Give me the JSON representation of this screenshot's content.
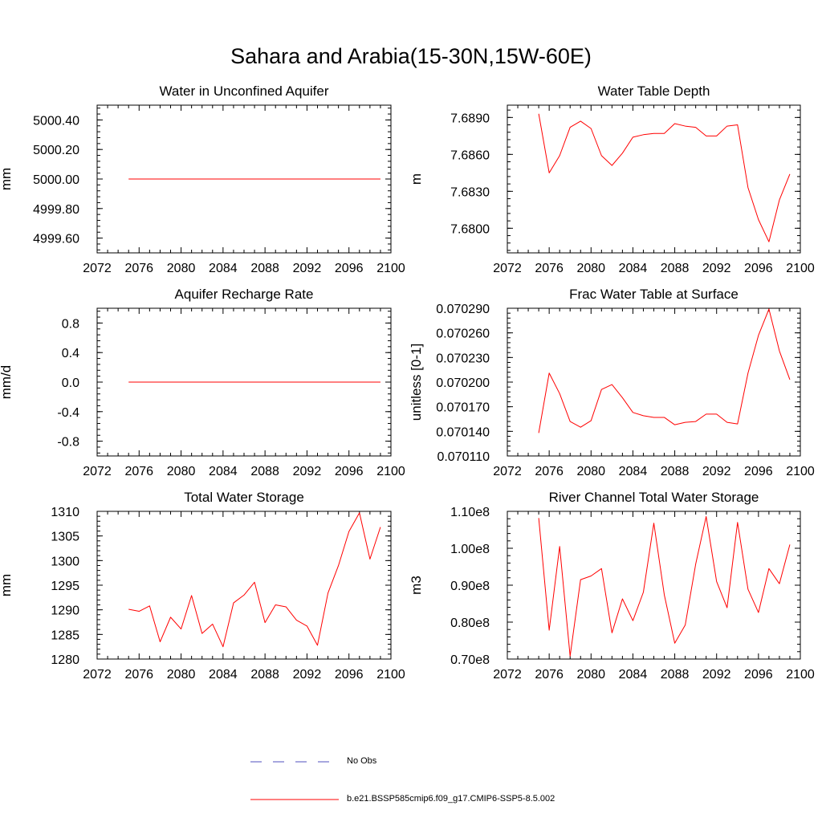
{
  "title": "Sahara and Arabia(15-30N,15W-60E)",
  "colors": {
    "model": "#ff0000",
    "obs": "#4f4fbf",
    "axis": "#000000"
  },
  "legend": [
    {
      "label": "No Obs",
      "style": "dashed",
      "color": "#4f4fbf"
    },
    {
      "label": "b.e21.BSSP585cmip6.f09_g17.CMIP6-SSP5-8.5.002",
      "style": "solid",
      "color": "#ff0000"
    }
  ],
  "chart_data": [
    {
      "type": "line",
      "title": "Water in Unconfined Aquifer",
      "ylabel": "mm",
      "xlim": [
        2072,
        2100
      ],
      "ylim": [
        4999.5,
        5000.5
      ],
      "xticks": [
        2072,
        2076,
        2080,
        2084,
        2088,
        2092,
        2096,
        2100
      ],
      "yticks": [
        4999.6,
        4999.8,
        5000.0,
        5000.2,
        5000.4
      ],
      "ytick_labels": [
        "4999.60",
        "4999.80",
        "5000.00",
        "5000.20",
        "5000.40"
      ],
      "series": [
        {
          "x": [
            2075,
            2076,
            2077,
            2078,
            2079,
            2080,
            2081,
            2082,
            2083,
            2084,
            2085,
            2086,
            2087,
            2088,
            2089,
            2090,
            2091,
            2092,
            2093,
            2094,
            2095,
            2096,
            2097,
            2098,
            2099
          ],
          "values": [
            5000,
            5000,
            5000,
            5000,
            5000,
            5000,
            5000,
            5000,
            5000,
            5000,
            5000,
            5000,
            5000,
            5000,
            5000,
            5000,
            5000,
            5000,
            5000,
            5000,
            5000,
            5000,
            5000,
            5000,
            5000
          ]
        }
      ]
    },
    {
      "type": "line",
      "title": "Water Table Depth",
      "ylabel": "m",
      "xlim": [
        2072,
        2100
      ],
      "ylim": [
        7.678,
        7.69
      ],
      "xticks": [
        2072,
        2076,
        2080,
        2084,
        2088,
        2092,
        2096,
        2100
      ],
      "yticks": [
        7.68,
        7.683,
        7.686,
        7.689
      ],
      "ytick_labels": [
        "7.6800",
        "7.6830",
        "7.6860",
        "7.6890"
      ],
      "series": [
        {
          "x": [
            2075,
            2076,
            2077,
            2078,
            2079,
            2080,
            2081,
            2082,
            2083,
            2084,
            2085,
            2086,
            2087,
            2088,
            2089,
            2090,
            2091,
            2092,
            2093,
            2094,
            2095,
            2096,
            2097,
            2098,
            2099
          ],
          "values": [
            7.6893,
            7.6845,
            7.6859,
            7.6882,
            7.6887,
            7.6881,
            7.6859,
            7.6851,
            7.6861,
            7.6874,
            7.6876,
            7.6877,
            7.6877,
            7.6885,
            7.6883,
            7.6882,
            7.6875,
            7.6875,
            7.6883,
            7.6884,
            7.6833,
            7.6807,
            7.6789,
            7.6823,
            7.6844
          ]
        }
      ]
    },
    {
      "type": "line",
      "title": "Aquifer Recharge Rate",
      "ylabel": "mm/d",
      "xlim": [
        2072,
        2100
      ],
      "ylim": [
        -1.0,
        1.0
      ],
      "xticks": [
        2072,
        2076,
        2080,
        2084,
        2088,
        2092,
        2096,
        2100
      ],
      "yticks": [
        -0.8,
        -0.4,
        0.0,
        0.4,
        0.8
      ],
      "ytick_labels": [
        "-0.8",
        "-0.4",
        "0.0",
        "0.4",
        "0.8"
      ],
      "series": [
        {
          "x": [
            2075,
            2076,
            2077,
            2078,
            2079,
            2080,
            2081,
            2082,
            2083,
            2084,
            2085,
            2086,
            2087,
            2088,
            2089,
            2090,
            2091,
            2092,
            2093,
            2094,
            2095,
            2096,
            2097,
            2098,
            2099
          ],
          "values": [
            0,
            0,
            0,
            0,
            0,
            0,
            0,
            0,
            0,
            0,
            0,
            0,
            0,
            0,
            0,
            0,
            0,
            0,
            0,
            0,
            0,
            0,
            0,
            0,
            0
          ]
        }
      ]
    },
    {
      "type": "line",
      "title": "Frac Water Table at Surface",
      "ylabel": "unitless [0-1]",
      "xlim": [
        2072,
        2100
      ],
      "ylim": [
        0.07011,
        0.07029
      ],
      "xticks": [
        2072,
        2076,
        2080,
        2084,
        2088,
        2092,
        2096,
        2100
      ],
      "yticks": [
        0.07011,
        0.07014,
        0.07017,
        0.0702,
        0.07023,
        0.07026,
        0.07029
      ],
      "ytick_labels": [
        "0.070110",
        "0.070140",
        "0.070170",
        "0.070200",
        "0.070230",
        "0.070260",
        "0.070290"
      ],
      "series": [
        {
          "x": [
            2075,
            2076,
            2077,
            2078,
            2079,
            2080,
            2081,
            2082,
            2083,
            2084,
            2085,
            2086,
            2087,
            2088,
            2089,
            2090,
            2091,
            2092,
            2093,
            2094,
            2095,
            2096,
            2097,
            2098,
            2099
          ],
          "values": [
            0.070138,
            0.070211,
            0.070186,
            0.070152,
            0.070145,
            0.070153,
            0.070191,
            0.070197,
            0.070181,
            0.070163,
            0.070159,
            0.070157,
            0.070157,
            0.070148,
            0.070151,
            0.070152,
            0.070161,
            0.070161,
            0.070151,
            0.070149,
            0.070211,
            0.070257,
            0.070289,
            0.070238,
            0.070203
          ]
        }
      ]
    },
    {
      "type": "line",
      "title": "Total Water Storage",
      "ylabel": "mm",
      "xlim": [
        2072,
        2100
      ],
      "ylim": [
        1280,
        1310
      ],
      "xticks": [
        2072,
        2076,
        2080,
        2084,
        2088,
        2092,
        2096,
        2100
      ],
      "yticks": [
        1280,
        1285,
        1290,
        1295,
        1300,
        1305,
        1310
      ],
      "ytick_labels": [
        "1280",
        "1285",
        "1290",
        "1295",
        "1300",
        "1305",
        "1310"
      ],
      "series": [
        {
          "x": [
            2075,
            2076,
            2077,
            2078,
            2079,
            2080,
            2081,
            2082,
            2083,
            2084,
            2085,
            2086,
            2087,
            2088,
            2089,
            2090,
            2091,
            2092,
            2093,
            2094,
            2095,
            2096,
            2097,
            2098,
            2099
          ],
          "values": [
            1290.1,
            1289.7,
            1290.8,
            1283.5,
            1288.5,
            1286.1,
            1292.9,
            1285.2,
            1287.1,
            1282.5,
            1291.4,
            1293.0,
            1295.6,
            1287.4,
            1291.0,
            1290.6,
            1287.9,
            1286.7,
            1282.8,
            1293.4,
            1299.0,
            1305.9,
            1309.7,
            1300.3,
            1306.8
          ]
        }
      ]
    },
    {
      "type": "line",
      "title": "River Channel Total Water Storage",
      "ylabel": "m3",
      "xlim": [
        2072,
        2100
      ],
      "ylim": [
        70000000,
        110000000
      ],
      "xticks": [
        2072,
        2076,
        2080,
        2084,
        2088,
        2092,
        2096,
        2100
      ],
      "yticks": [
        70000000,
        80000000,
        90000000,
        100000000,
        110000000
      ],
      "ytick_labels": [
        "0.70e8",
        "0.80e8",
        "0.90e8",
        "1.00e8",
        "1.10e8"
      ],
      "series": [
        {
          "x": [
            2075,
            2076,
            2077,
            2078,
            2079,
            2080,
            2081,
            2082,
            2083,
            2084,
            2085,
            2086,
            2087,
            2088,
            2089,
            2090,
            2091,
            2092,
            2093,
            2094,
            2095,
            2096,
            2097,
            2098,
            2099
          ],
          "values": [
            108200000,
            77800000,
            100500000,
            70800000,
            91500000,
            92500000,
            94500000,
            77100000,
            86300000,
            80400000,
            88100000,
            106800000,
            87400000,
            74300000,
            79200000,
            95700000,
            108600000,
            91000000,
            83900000,
            107000000,
            88900000,
            82600000,
            94500000,
            90400000,
            101000000
          ]
        }
      ]
    }
  ]
}
